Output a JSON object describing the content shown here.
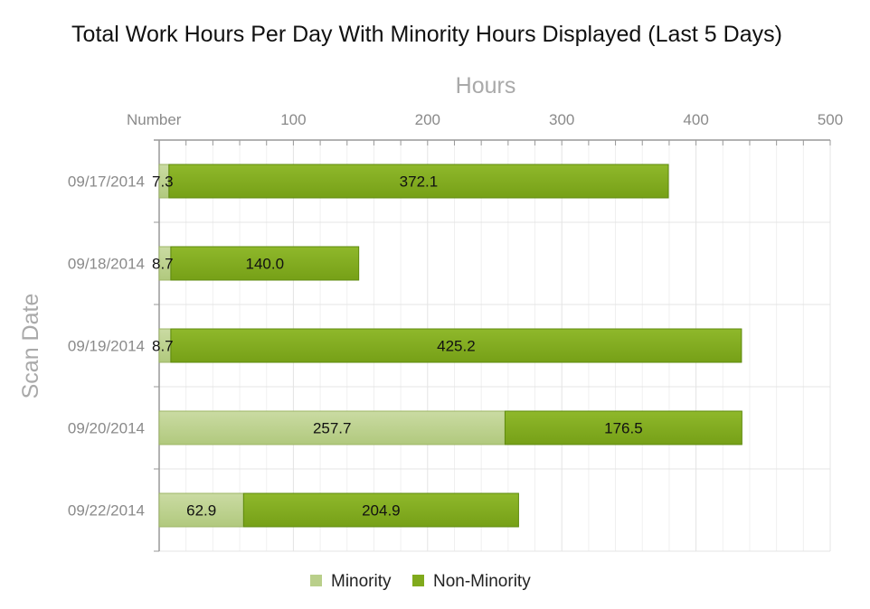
{
  "chart_data": {
    "type": "bar",
    "orientation": "horizontal",
    "stacked": true,
    "title": "Total Work Hours Per Day With Minority Hours Displayed (Last 5 Days)",
    "xlabel": "Hours",
    "ylabel": "Scan Date",
    "x_axis_position": "top",
    "xlim": [
      0,
      500
    ],
    "x_ticks": [
      0,
      100,
      200,
      300,
      400,
      500
    ],
    "x_tick_labels": [
      "Number",
      "100",
      "200",
      "300",
      "400",
      "500"
    ],
    "grid": true,
    "legend_position": "bottom-center",
    "categories": [
      "09/17/2014",
      "09/18/2014",
      "09/19/2014",
      "09/20/2014",
      "09/22/2014"
    ],
    "series": [
      {
        "name": "Minority",
        "values": [
          7.3,
          8.7,
          8.7,
          257.7,
          62.9
        ],
        "labels": [
          "7.3",
          "8.7",
          "8.7",
          "257.7",
          "62.9"
        ],
        "color": "#b9cf8a"
      },
      {
        "name": "Non-Minority",
        "values": [
          372.1,
          140.0,
          425.2,
          176.5,
          204.9
        ],
        "labels": [
          "372.1",
          "140.0",
          "425.2",
          "176.5",
          "204.9"
        ],
        "color": "#80aa1c"
      }
    ]
  }
}
